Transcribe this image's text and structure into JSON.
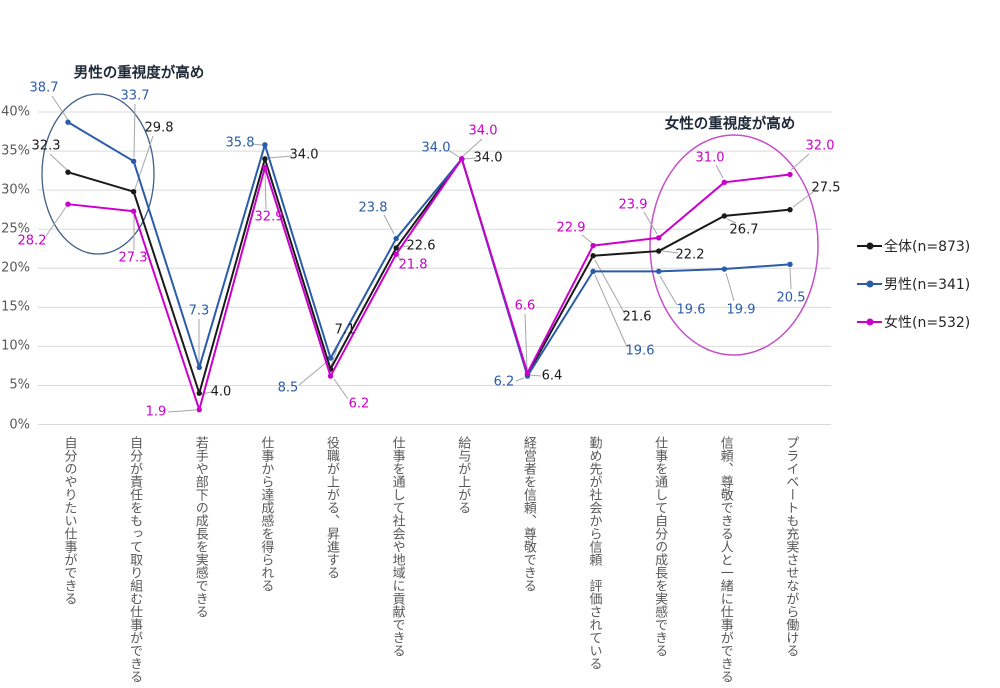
{
  "chart_data": {
    "type": "line",
    "title": "",
    "xlabel": "",
    "ylabel": "",
    "ylim": [
      0,
      40
    ],
    "grid": true,
    "legend_position": "right",
    "yticks": [
      "0%",
      "5%",
      "10%",
      "15%",
      "20%",
      "25%",
      "30%",
      "35%",
      "40%"
    ],
    "categories": [
      "自分のやりたい仕事ができる",
      "自分が責任をもって取り組む仕事ができる",
      "若手や部下の成長を実感できる",
      "仕事から達成感を得られる",
      "役職が上がる、昇進する",
      "仕事を通して社会や地域に貢献できる",
      "給与が上がる",
      "経営者を信頼、尊敬できる",
      "勤め先が社会から信頼　評価されている",
      "仕事を通して自分の成長を実感できる",
      "信頼、尊敬できる人と一緒に仕事ができる",
      "プライベートも充実させながら働ける"
    ],
    "series": [
      {
        "name": "全体(n=873)",
        "color": "#1a1a1a",
        "values": [
          32.3,
          29.8,
          4.0,
          34.0,
          7.1,
          22.6,
          34.0,
          6.4,
          21.6,
          22.2,
          26.7,
          27.5
        ]
      },
      {
        "name": "男性(n=341)",
        "color": "#2b5ca9",
        "values": [
          38.7,
          33.7,
          7.3,
          35.8,
          8.5,
          23.8,
          34.0,
          6.2,
          19.6,
          19.6,
          19.9,
          20.5
        ]
      },
      {
        "name": "女性(n=532)",
        "color": "#cc00cc",
        "values": [
          28.2,
          27.3,
          1.9,
          32.9,
          6.2,
          21.8,
          34.0,
          6.6,
          22.9,
          23.9,
          31.0,
          32.0
        ]
      }
    ],
    "annotations": [
      {
        "text": "男性の重視度が高め",
        "applies_to": "categories 1-2",
        "ellipse_color": "#3e5f8a"
      },
      {
        "text": "女性の重視度が高め",
        "applies_to": "categories 10-12",
        "ellipse_color": "#c650c6"
      }
    ]
  },
  "annotations": {
    "male_note": "男性の重視度が高め",
    "female_note": "女性の重視度が高め"
  },
  "colors": {
    "grid": "#d9d9d9",
    "leader": "#a6a6a6",
    "axis_text": "#595959",
    "male_ellipse": "#3e5f8a",
    "female_ellipse": "#c650c6"
  }
}
